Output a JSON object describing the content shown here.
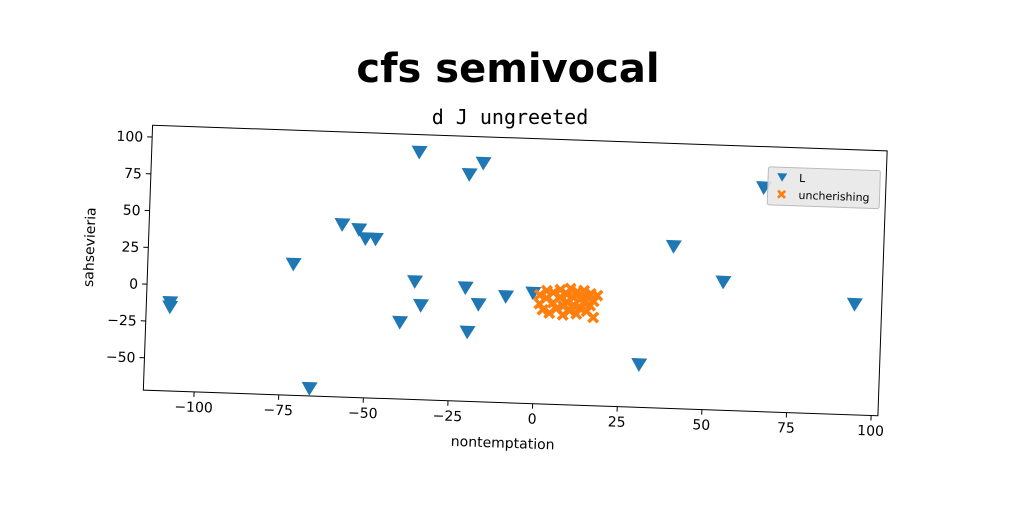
{
  "chart_data": {
    "type": "scatter",
    "title": "cfs semivocal",
    "subtitle": "d J ungreeted",
    "xlabel": "nontemptation",
    "ylabel": "sahsevieria",
    "xlim": [
      -115,
      102
    ],
    "ylim": [
      -72,
      108
    ],
    "xticks": [
      -100,
      -75,
      -50,
      -25,
      0,
      25,
      50,
      75,
      100
    ],
    "yticks": [
      -50,
      -25,
      0,
      25,
      50,
      75,
      100
    ],
    "xtick_labels": [
      "−100",
      "−75",
      "−50",
      "−25",
      "0",
      "25",
      "50",
      "75",
      "100"
    ],
    "ytick_labels": [
      "−50",
      "−25",
      "0",
      "25",
      "50",
      "75",
      "100"
    ],
    "grid": false,
    "legend_position": "top-right",
    "series": [
      {
        "name": "L",
        "marker": "triangle-down",
        "color": "#1f77b4",
        "points": [
          {
            "x": -108,
            "y": -12
          },
          {
            "x": -108,
            "y": -15
          },
          {
            "x": -72,
            "y": 17
          },
          {
            "x": -66,
            "y": -67
          },
          {
            "x": -58,
            "y": 45
          },
          {
            "x": -53,
            "y": 42
          },
          {
            "x": -51,
            "y": 36
          },
          {
            "x": -48,
            "y": 36
          },
          {
            "x": -40,
            "y": -20
          },
          {
            "x": -36,
            "y": 96
          },
          {
            "x": -36,
            "y": 8
          },
          {
            "x": -34,
            "y": -8
          },
          {
            "x": -21,
            "y": 82
          },
          {
            "x": -21,
            "y": 5
          },
          {
            "x": -20,
            "y": -25
          },
          {
            "x": -17,
            "y": 90
          },
          {
            "x": -17,
            "y": -6
          },
          {
            "x": -9,
            "y": 0
          },
          {
            "x": -1,
            "y": 3
          },
          {
            "x": 31,
            "y": -43
          },
          {
            "x": 40,
            "y": 38
          },
          {
            "x": 55,
            "y": 15
          },
          {
            "x": 66,
            "y": 80
          },
          {
            "x": 94,
            "y": 3
          }
        ]
      },
      {
        "name": "uncherishing",
        "marker": "x-filled",
        "color": "#ff7f0e",
        "points": [
          {
            "x": 1,
            "y": 2
          },
          {
            "x": 1,
            "y": -4
          },
          {
            "x": 2,
            "y": -8
          },
          {
            "x": 3,
            "y": 5
          },
          {
            "x": 3,
            "y": 0
          },
          {
            "x": 4,
            "y": -10
          },
          {
            "x": 5,
            "y": 4
          },
          {
            "x": 5,
            "y": -3
          },
          {
            "x": 6,
            "y": -7
          },
          {
            "x": 7,
            "y": 6
          },
          {
            "x": 7,
            "y": 1
          },
          {
            "x": 8,
            "y": -5
          },
          {
            "x": 8,
            "y": -11
          },
          {
            "x": 9,
            "y": 3
          },
          {
            "x": 9,
            "y": -2
          },
          {
            "x": 10,
            "y": 7
          },
          {
            "x": 10,
            "y": -8
          },
          {
            "x": 11,
            "y": 1
          },
          {
            "x": 11,
            "y": -4
          },
          {
            "x": 12,
            "y": 5
          },
          {
            "x": 12,
            "y": -10
          },
          {
            "x": 13,
            "y": 0
          },
          {
            "x": 13,
            "y": -6
          },
          {
            "x": 14,
            "y": 6
          },
          {
            "x": 14,
            "y": -2
          },
          {
            "x": 15,
            "y": 2
          },
          {
            "x": 15,
            "y": -8
          },
          {
            "x": 16,
            "y": -4
          },
          {
            "x": 16,
            "y": 4
          },
          {
            "x": 17,
            "y": -1
          },
          {
            "x": 17,
            "y": -12
          },
          {
            "x": 18,
            "y": 3
          }
        ]
      }
    ]
  }
}
